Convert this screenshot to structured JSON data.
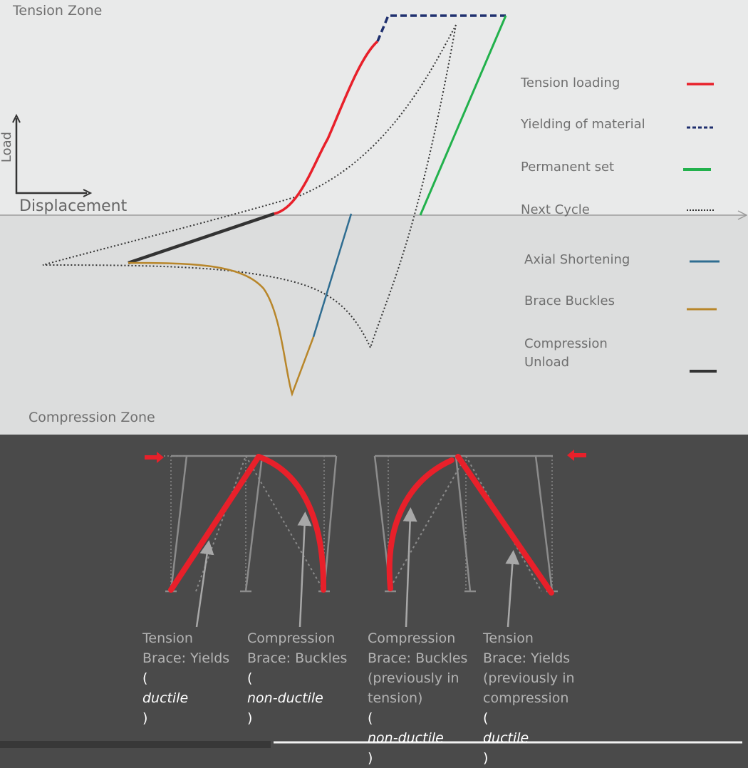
{
  "diagram": {
    "tension_zone": "Tension Zone",
    "compression_zone": "Compression Zone",
    "axis_y": "Load",
    "axis_x": "Displacement",
    "legend": [
      {
        "label": "Tension loading",
        "color": "#e8202a",
        "style": "solid"
      },
      {
        "label": "Yielding of material",
        "color": "#1e2f6e",
        "style": "dashed"
      },
      {
        "label": "Permanent set",
        "color": "#22b14c",
        "style": "solid"
      },
      {
        "label": "Next Cycle",
        "color": "#333333",
        "style": "dotted"
      },
      {
        "label": "Axial Shortening",
        "color": "#2f6d91",
        "style": "solid"
      },
      {
        "label": "Brace Buckles",
        "color": "#b8862a",
        "style": "solid"
      },
      {
        "label": "Compression Unload",
        "color": "#333333",
        "style": "solid"
      }
    ],
    "compression_unload_label": {
      "line1": "Compression",
      "line2": "Unload"
    }
  },
  "captions": {
    "c1": {
      "line1": "Tension",
      "line2": "Brace: Yields",
      "open": "(",
      "note": "ductile",
      "close": ")"
    },
    "c2": {
      "line1": "Compression",
      "line2": "Brace: Buckles",
      "open": "(",
      "note": "non-ductile",
      "close": ")"
    },
    "c3": {
      "line1": "Compression",
      "line2": "Brace: Buckles",
      "line3": "(previously in",
      "line4": "tension)",
      "open": "(",
      "note": "non-ductile",
      "close": ")"
    },
    "c4": {
      "line1": "Tension",
      "line2": "Brace: Yields",
      "line3": "(previously in",
      "line4": "compression",
      "open": "(",
      "note": "ductile",
      "close": ")"
    }
  }
}
